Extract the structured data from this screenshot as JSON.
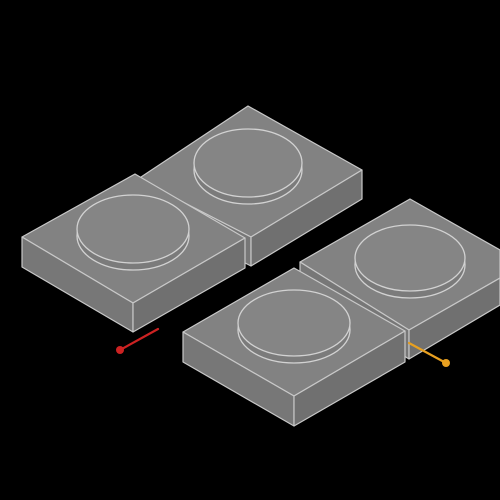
{
  "scene": {
    "background": "#000000",
    "block_color": "#808080",
    "edge_color": "#c8c8c8"
  },
  "blocks": [
    {
      "name": "block-back-left"
    },
    {
      "name": "block-back-right"
    },
    {
      "name": "block-front-right"
    },
    {
      "name": "block-front-left"
    }
  ],
  "markers": [
    {
      "name": "red-pin-marker",
      "color": "#cc2222"
    },
    {
      "name": "orange-pin-marker",
      "color": "#e8a020"
    }
  ]
}
